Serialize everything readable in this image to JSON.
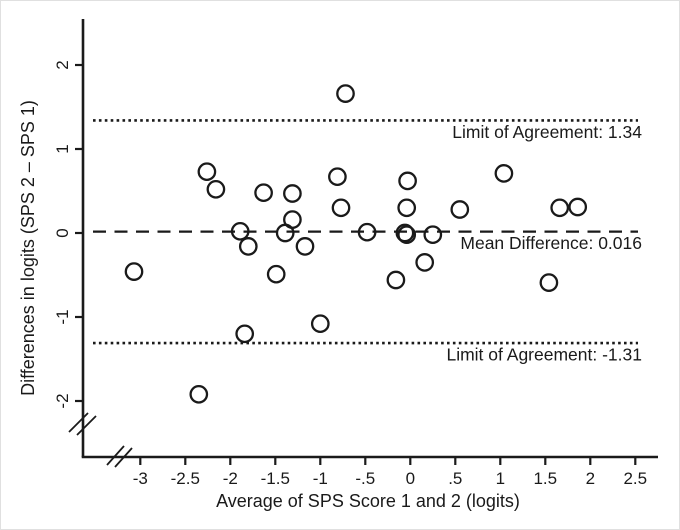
{
  "figure": {
    "background": "#ffffff",
    "ink": "#1a1a1a"
  },
  "chart_data": {
    "type": "scatter",
    "title": "",
    "xlabel": "Average of SPS Score 1 and 2 (logits)",
    "ylabel": "Differences in logits (SPS 2 – SPS 1)",
    "marker": "open-circle",
    "grid": false,
    "legend": "none",
    "xlim": [
      -3.64,
      2.75
    ],
    "ylim": [
      -2.67,
      2.55
    ],
    "axis_break_x": true,
    "axis_break_y": true,
    "x_tick_values": [
      -3,
      -2.5,
      -2,
      -1.5,
      -1,
      -0.5,
      0,
      0.5,
      1,
      1.5,
      2,
      2.5
    ],
    "x_tick_labels": [
      "-3",
      "-2.5",
      "-2",
      "-1.5",
      "-1",
      "-.5",
      "0",
      ".5",
      "1",
      "1.5",
      "2",
      "2.5"
    ],
    "y_tick_values": [
      2,
      1,
      0,
      -1,
      -2
    ],
    "y_tick_labels": [
      "2",
      "1",
      "0",
      "-1",
      "-2"
    ],
    "reference_lines": [
      {
        "id": "upper-loa",
        "value": 1.34,
        "style": "dotted",
        "label": "Limit of Agreement: 1.34"
      },
      {
        "id": "mean",
        "value": 0.016,
        "style": "dashed",
        "label": "Mean Difference: 0.016"
      },
      {
        "id": "lower-loa",
        "value": -1.31,
        "style": "dotted",
        "label": "Limit of Agreement: -1.31"
      }
    ],
    "points": [
      [
        -3.07,
        -0.46
      ],
      [
        -2.35,
        -1.92
      ],
      [
        -2.26,
        0.73
      ],
      [
        -2.16,
        0.52
      ],
      [
        -1.89,
        0.02
      ],
      [
        -1.84,
        -1.2
      ],
      [
        -1.8,
        -0.16
      ],
      [
        -1.63,
        0.48
      ],
      [
        -1.49,
        -0.49
      ],
      [
        -1.39,
        0.0
      ],
      [
        -1.31,
        0.47
      ],
      [
        -1.31,
        0.16
      ],
      [
        -1.17,
        -0.16
      ],
      [
        -1.0,
        -1.08
      ],
      [
        -0.81,
        0.67
      ],
      [
        -0.77,
        0.3
      ],
      [
        -0.72,
        1.66
      ],
      [
        -0.48,
        0.01
      ],
      [
        -0.16,
        -0.56
      ],
      [
        -0.06,
        0.0
      ],
      [
        -0.04,
        -0.02
      ],
      [
        -0.04,
        0.3
      ],
      [
        -0.03,
        0.62
      ],
      [
        0.16,
        -0.35
      ],
      [
        0.25,
        -0.02
      ],
      [
        0.55,
        0.28
      ],
      [
        1.04,
        0.71
      ],
      [
        1.54,
        -0.59
      ],
      [
        1.66,
        0.3
      ],
      [
        1.86,
        0.31
      ]
    ]
  }
}
